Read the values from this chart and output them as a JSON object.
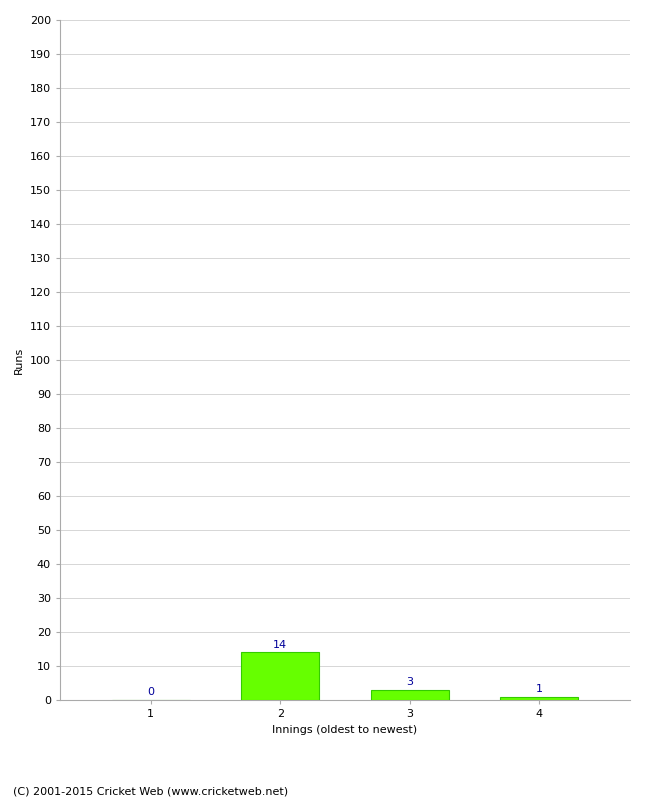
{
  "categories": [
    1,
    2,
    3,
    4
  ],
  "values": [
    0,
    14,
    3,
    1
  ],
  "bar_color": "#66ff00",
  "bar_edge_color": "#33cc00",
  "value_label_color": "#000099",
  "xlabel": "Innings (oldest to newest)",
  "ylabel": "Runs",
  "ylim": [
    0,
    200
  ],
  "yticks": [
    0,
    10,
    20,
    30,
    40,
    50,
    60,
    70,
    80,
    90,
    100,
    110,
    120,
    130,
    140,
    150,
    160,
    170,
    180,
    190,
    200
  ],
  "footer": "(C) 2001-2015 Cricket Web (www.cricketweb.net)",
  "value_fontsize": 8,
  "axis_label_fontsize": 8,
  "tick_fontsize": 8,
  "footer_fontsize": 8,
  "bar_width": 0.6,
  "grid_color": "#d0d0d0",
  "spine_color": "#aaaaaa"
}
